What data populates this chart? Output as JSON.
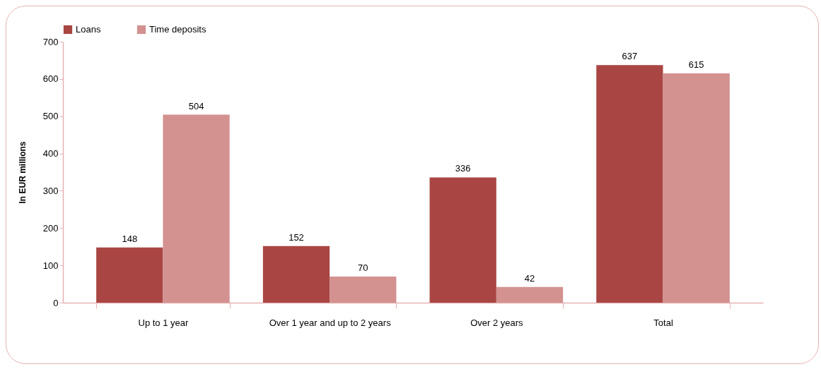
{
  "chart_data": {
    "type": "bar",
    "ylabel": "In EUR millions",
    "categories": [
      "Up to 1 year",
      "Over 1 year and up to 2 years",
      "Over 2 years",
      "Total"
    ],
    "series": [
      {
        "name": "Loans",
        "color": "#a94643",
        "values": [
          148,
          152,
          336,
          637
        ]
      },
      {
        "name": "Time deposits",
        "color": "#d39190",
        "values": [
          504,
          70,
          42,
          615
        ]
      }
    ],
    "ylim": [
      0,
      700
    ],
    "yticks": [
      0,
      100,
      200,
      300,
      400,
      500,
      600,
      700
    ],
    "grid": false,
    "legend": "top",
    "data_labels": true
  }
}
